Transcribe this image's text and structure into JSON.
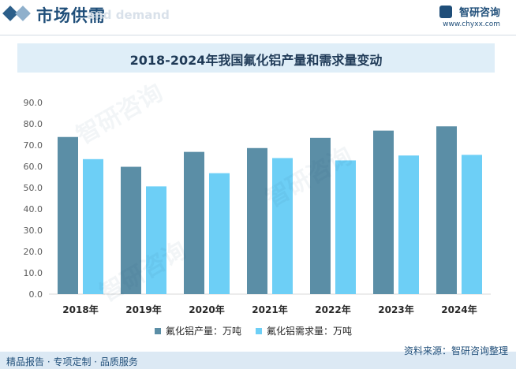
{
  "header": {
    "section_title": "市场供需",
    "section_subtitle": "and demand",
    "logo_name": "智研咨询",
    "logo_url": "www.chyxx.com"
  },
  "footer": {
    "left_text": "精品报告 · 专项定制 · 品质服务",
    "source_text": "资料来源：智研咨询整理"
  },
  "colors": {
    "production": "#5b8ea6",
    "demand": "#6dcff6",
    "accent": "#1f4e79"
  },
  "chart_data": {
    "type": "bar",
    "title": "2018-2024年我国氟化铝产量和需求量变动",
    "categories": [
      "2018年",
      "2019年",
      "2020年",
      "2021年",
      "2022年",
      "2023年",
      "2024年"
    ],
    "series": [
      {
        "name": "氟化铝产量：万吨",
        "values": [
          73.8,
          59.8,
          66.8,
          68.6,
          73.4,
          76.8,
          78.8
        ]
      },
      {
        "name": "氟化铝需求量：万吨",
        "values": [
          63.4,
          50.6,
          56.8,
          63.9,
          62.8,
          65.1,
          65.4
        ]
      }
    ],
    "ylim": [
      0,
      90
    ],
    "yticks": [
      "0.0",
      "10.0",
      "20.0",
      "30.0",
      "40.0",
      "50.0",
      "60.0",
      "70.0",
      "80.0",
      "90.0"
    ],
    "grid": false,
    "legend": "bottom"
  }
}
